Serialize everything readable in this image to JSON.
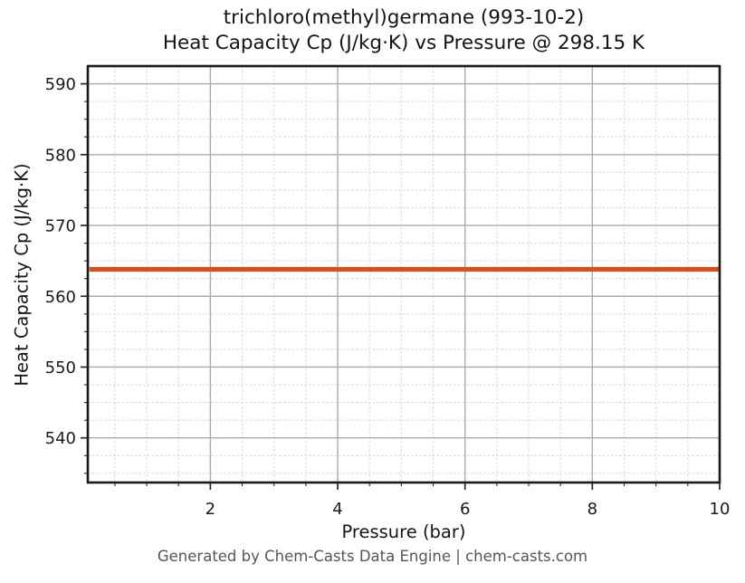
{
  "title": {
    "line1": "trichloro(methyl)germane (993-10-2)",
    "line2": "Heat Capacity Cp (J/kg·K) vs Pressure @ 298.15 K"
  },
  "footer": "Generated by Chem-Casts Data Engine | chem-casts.com",
  "chart_data": {
    "type": "line",
    "title": "trichloro(methyl)germane (993-10-2)\nHeat Capacity Cp (J/kg·K) vs Pressure @ 298.15 K",
    "xlabel": "Pressure (bar)",
    "ylabel": "Heat Capacity Cp (J/kg·K)",
    "xlim": [
      0.075,
      10
    ],
    "ylim": [
      533.7,
      592.5
    ],
    "xticks": [
      2,
      4,
      6,
      8,
      10
    ],
    "yticks": [
      540,
      550,
      560,
      570,
      580,
      590
    ],
    "x_minor_step": 0.5,
    "y_minor_step": 2.5,
    "grid": true,
    "legend_position": "none",
    "series": [
      {
        "name": "Heat Capacity Cp",
        "x": [
          0.1,
          10
        ],
        "y": [
          563.8,
          563.8
        ],
        "color": "#d2521e"
      }
    ],
    "annotation": "Generated by Chem-Casts Data Engine | chem-casts.com"
  },
  "colors": {
    "line": "#d2521e",
    "grid_major": "#ababab",
    "grid_minor": "#dadada",
    "spine": "#1a1a1a",
    "tick": "#262626",
    "title_text": "#141414",
    "footer_text": "#555555"
  }
}
